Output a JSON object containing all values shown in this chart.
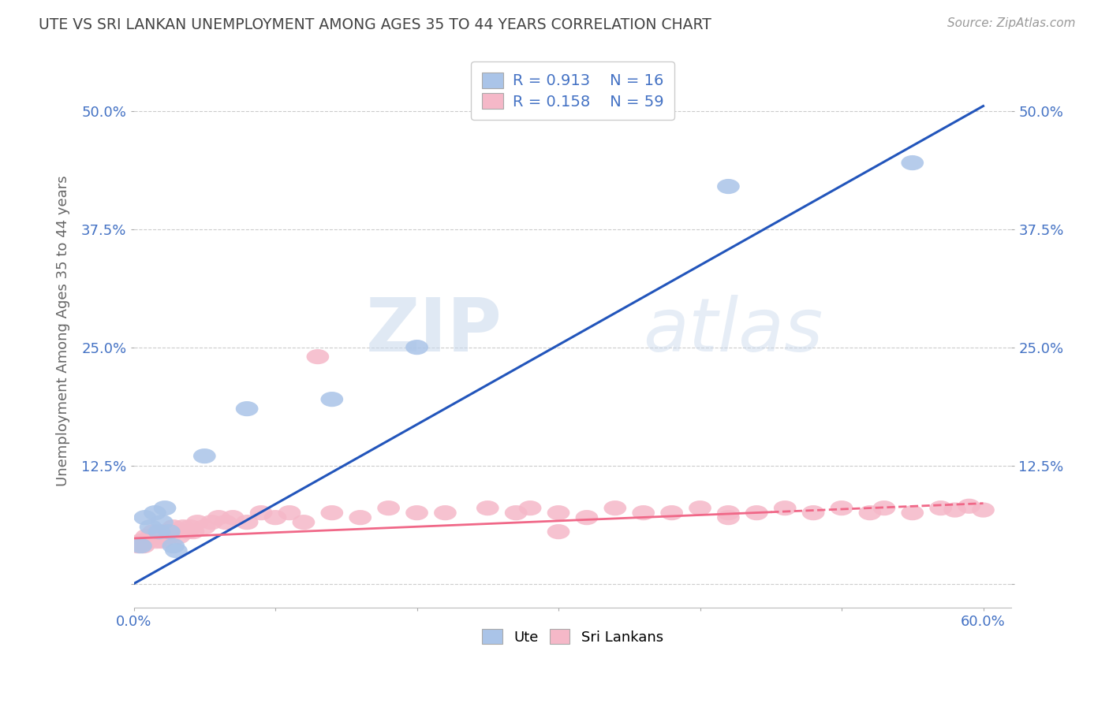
{
  "title": "UTE VS SRI LANKAN UNEMPLOYMENT AMONG AGES 35 TO 44 YEARS CORRELATION CHART",
  "source": "Source: ZipAtlas.com",
  "ylabel": "Unemployment Among Ages 35 to 44 years",
  "xlim": [
    0.0,
    0.62
  ],
  "ylim": [
    -0.025,
    0.56
  ],
  "xtick_positions": [
    0.0,
    0.1,
    0.2,
    0.3,
    0.4,
    0.5,
    0.6
  ],
  "xtick_labels": [
    "0.0%",
    "",
    "",
    "",
    "",
    "",
    "60.0%"
  ],
  "ytick_positions": [
    0.0,
    0.125,
    0.25,
    0.375,
    0.5
  ],
  "ytick_labels": [
    "",
    "12.5%",
    "25.0%",
    "37.5%",
    "50.0%"
  ],
  "ute_color": "#aac4e8",
  "sri_color": "#f5b8c8",
  "ute_line_color": "#2255bb",
  "sri_line_color": "#f06888",
  "axis_tick_color": "#4472c4",
  "background_color": "#ffffff",
  "grid_color": "#cccccc",
  "legend_R_ute": "R = 0.913",
  "legend_N_ute": "N = 16",
  "legend_R_sri": "R = 0.158",
  "legend_N_sri": "N = 59",
  "watermark_zip": "ZIP",
  "watermark_atlas": "atlas",
  "ute_x": [
    0.005,
    0.008,
    0.012,
    0.015,
    0.018,
    0.02,
    0.022,
    0.025,
    0.028,
    0.03,
    0.05,
    0.08,
    0.14,
    0.2,
    0.42,
    0.55
  ],
  "ute_y": [
    0.04,
    0.07,
    0.06,
    0.075,
    0.055,
    0.065,
    0.08,
    0.055,
    0.04,
    0.035,
    0.135,
    0.185,
    0.195,
    0.25,
    0.42,
    0.445
  ],
  "sri_x": [
    0.003,
    0.005,
    0.007,
    0.009,
    0.01,
    0.012,
    0.014,
    0.016,
    0.018,
    0.02,
    0.022,
    0.025,
    0.028,
    0.03,
    0.032,
    0.035,
    0.038,
    0.04,
    0.042,
    0.045,
    0.05,
    0.055,
    0.06,
    0.065,
    0.07,
    0.08,
    0.09,
    0.1,
    0.11,
    0.12,
    0.13,
    0.14,
    0.16,
    0.18,
    0.2,
    0.22,
    0.25,
    0.27,
    0.28,
    0.3,
    0.32,
    0.34,
    0.36,
    0.38,
    0.4,
    0.42,
    0.44,
    0.46,
    0.48,
    0.5,
    0.52,
    0.53,
    0.55,
    0.57,
    0.58,
    0.59,
    0.6,
    0.42,
    0.3
  ],
  "sri_y": [
    0.04,
    0.045,
    0.04,
    0.05,
    0.045,
    0.05,
    0.055,
    0.045,
    0.05,
    0.045,
    0.055,
    0.05,
    0.06,
    0.055,
    0.05,
    0.06,
    0.055,
    0.06,
    0.055,
    0.065,
    0.06,
    0.065,
    0.07,
    0.065,
    0.07,
    0.065,
    0.075,
    0.07,
    0.075,
    0.065,
    0.24,
    0.075,
    0.07,
    0.08,
    0.075,
    0.075,
    0.08,
    0.075,
    0.08,
    0.075,
    0.07,
    0.08,
    0.075,
    0.075,
    0.08,
    0.075,
    0.075,
    0.08,
    0.075,
    0.08,
    0.075,
    0.08,
    0.075,
    0.08,
    0.078,
    0.082,
    0.078,
    0.07,
    0.055
  ],
  "ute_line_x": [
    0.0,
    0.6
  ],
  "ute_line_y": [
    0.0,
    0.505
  ],
  "sri_line_x": [
    0.0,
    0.6
  ],
  "sri_line_y": [
    0.048,
    0.085
  ]
}
